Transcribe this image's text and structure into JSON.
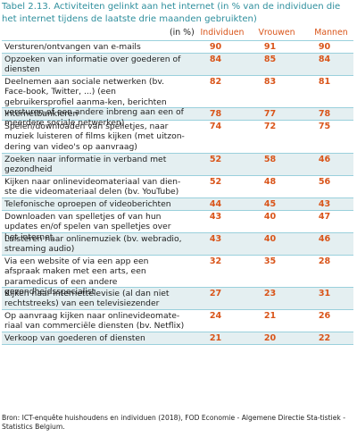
{
  "title": "Tabel 2.13. Activiteiten gelinkt aan het internet (in % van de individuen die het internet tijdens de laatste drie maanden gebruikten)",
  "header": {
    "unit": "(in %)",
    "columns": [
      "Individuen",
      "Vrouwen",
      "Mannen"
    ]
  },
  "rows": [
    {
      "label": "Versturen/ontvangen van e-mails",
      "values": [
        "90",
        "91",
        "90"
      ]
    },
    {
      "label": "Opzoeken van informatie over goederen of diensten",
      "values": [
        "84",
        "85",
        "84"
      ]
    },
    {
      "label": "Deelnemen aan sociale netwerken (bv. Face-book, Twitter, ...) (een gebruikersprofiel aanma-ken, berichten versturen of een andere inbreng aan een of meerdere sociale netwerken)",
      "values": [
        "82",
        "83",
        "81"
      ]
    },
    {
      "label": "Internetbankieren",
      "values": [
        "78",
        "77",
        "78"
      ]
    },
    {
      "label": "Spelen/downloaden van spelletjes, naar muziek luisteren of films kijken (met uitzon-dering van video's op aanvraag)",
      "values": [
        "74",
        "72",
        "75"
      ]
    },
    {
      "label": "Zoeken naar informatie in verband met gezondheid",
      "values": [
        "52",
        "58",
        "46"
      ]
    },
    {
      "label": "Kijken naar onlinevideomateriaal van dien-ste die videomateriaal delen (bv. YouTube)",
      "values": [
        "52",
        "48",
        "56"
      ]
    },
    {
      "label": "Telefonische oproepen of videoberichten",
      "values": [
        "44",
        "45",
        "43"
      ]
    },
    {
      "label": "Downloaden van spelletjes of van hun updates en/of spelen van spelletjes over het internet",
      "values": [
        "43",
        "40",
        "47"
      ]
    },
    {
      "label": "Luisteren naar onlinemuziek (bv. webradio, streaming audio)",
      "values": [
        "43",
        "40",
        "46"
      ]
    },
    {
      "label": "Via een website of via een app een afspraak maken met een arts, een paramedicus of een andere gezondheidsspecialist",
      "values": [
        "32",
        "35",
        "28"
      ]
    },
    {
      "label": "Kijken naar internettelevisie (al dan niet rechtstreeks) van een televisiezender",
      "values": [
        "27",
        "23",
        "31"
      ]
    },
    {
      "label": "Op aanvraag kijken naar onlinevideomate-riaal van commerciële diensten (bv. Netflix)",
      "values": [
        "24",
        "21",
        "26"
      ]
    },
    {
      "label": "Verkoop van goederen of diensten",
      "values": [
        "21",
        "20",
        "22"
      ]
    }
  ],
  "source": "Bron: ICT-enquête huishoudens en individuen (2018), FOD Economie - Algemene Directie Sta-tistiek - Statistics Belgium."
}
